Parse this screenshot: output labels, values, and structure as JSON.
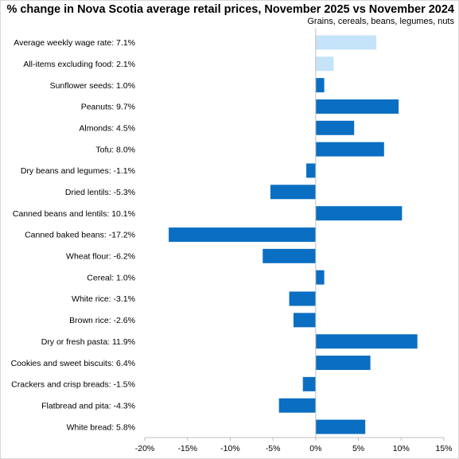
{
  "chart_data": {
    "type": "bar",
    "orientation": "horizontal",
    "title": "% change in Nova Scotia average retail prices, November 2025 vs November 2024",
    "subtitle": "Grains, cereals, beans, legumes, nuts",
    "xlabel": "",
    "ylabel": "",
    "xlim": [
      -20,
      15
    ],
    "xticks": [
      -20,
      -15,
      -10,
      -5,
      0,
      5,
      10,
      15
    ],
    "xtick_labels": [
      "-20%",
      "-15%",
      "-10%",
      "-5%",
      "0%",
      "5%",
      "10%",
      "15%"
    ],
    "grid": false,
    "legend": "none",
    "categories": [
      "Average weekly wage rate: 7.1%",
      "All-items excluding food: 2.1%",
      "Sunflower seeds: 1.0%",
      "Peanuts: 9.7%",
      "Almonds: 4.5%",
      "Tofu: 8.0%",
      "Dry beans and legumes: -1.1%",
      "Dried lentils: -5.3%",
      "Canned beans and lentils: 10.1%",
      "Canned baked beans: -17.2%",
      "Wheat flour: -6.2%",
      "Cereal: 1.0%",
      "White rice: -3.1%",
      "Brown rice: -2.6%",
      "Dry or fresh pasta: 11.9%",
      "Cookies and sweet biscuits: 6.4%",
      "Crackers and crisp breads: -1.5%",
      "Flatbread and pita: -4.3%",
      "White bread: 5.8%"
    ],
    "values": [
      7.1,
      2.1,
      1.0,
      9.7,
      4.5,
      8.0,
      -1.1,
      -5.3,
      10.1,
      -17.2,
      -6.2,
      1.0,
      -3.1,
      -2.6,
      11.9,
      6.4,
      -1.5,
      -4.3,
      5.8
    ],
    "bar_colors": [
      "#c5e3f9",
      "#c5e3f9",
      "#0a6ec2",
      "#0a6ec2",
      "#0a6ec2",
      "#0a6ec2",
      "#0a6ec2",
      "#0a6ec2",
      "#0a6ec2",
      "#0a6ec2",
      "#0a6ec2",
      "#0a6ec2",
      "#0a6ec2",
      "#0a6ec2",
      "#0a6ec2",
      "#0a6ec2",
      "#0a6ec2",
      "#0a6ec2",
      "#0a6ec2"
    ],
    "colors": {
      "benchmark": "#c5e3f9",
      "item": "#0a6ec2",
      "axis": "#bfbfbf"
    }
  }
}
